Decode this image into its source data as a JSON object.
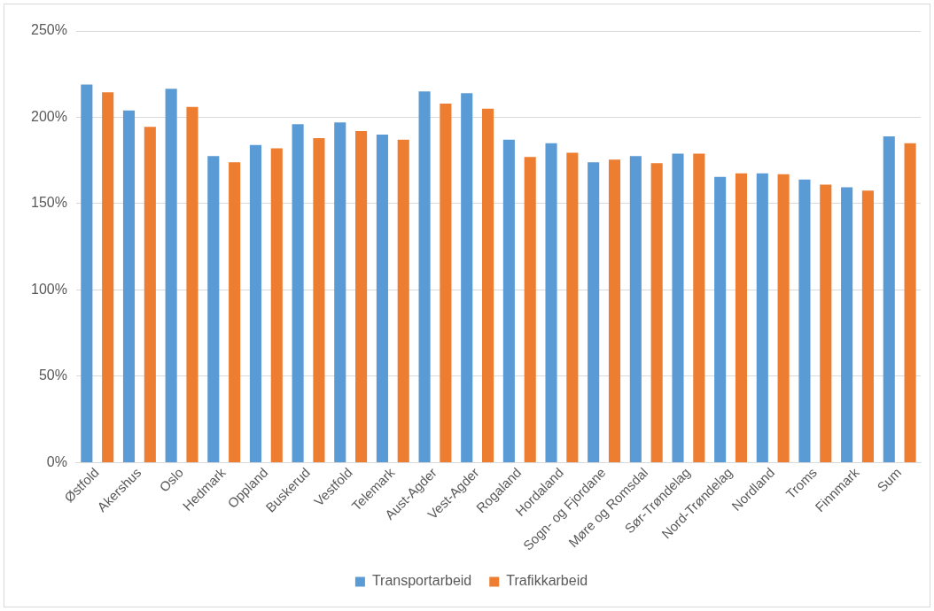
{
  "chart_data": {
    "type": "bar",
    "categories": [
      "Østfold",
      "Akershus",
      "Oslo",
      "Hedmark",
      "Oppland",
      "Buskerud",
      "Vestfold",
      "Telemark",
      "Aust-Agder",
      "Vest-Agder",
      "Rogaland",
      "Hordaland",
      "Sogn- og Fjordane",
      "Møre og Romsdal",
      "Sør-Trøndelag",
      "Nord-Trøndelag",
      "Nordland",
      "Troms",
      "Finnmark",
      "Sum"
    ],
    "series": [
      {
        "name": "Transportarbeid",
        "color": "#5b9bd5",
        "values": [
          219,
          204,
          216.5,
          177.5,
          184,
          196,
          197,
          190,
          215,
          214,
          187,
          185,
          174,
          177.5,
          179,
          165.5,
          167.5,
          164,
          159.5,
          189
        ]
      },
      {
        "name": "Trafikkarbeid",
        "color": "#ed7d31",
        "values": [
          214.5,
          194.5,
          206,
          174,
          182,
          188,
          192,
          187,
          208,
          205,
          177,
          179.5,
          175.5,
          173.5,
          179,
          167.5,
          167,
          161,
          157.5,
          185
        ]
      }
    ],
    "ylim": [
      0,
      250
    ],
    "yticks": [
      {
        "value": 0,
        "label": "0%"
      },
      {
        "value": 50,
        "label": "50%"
      },
      {
        "value": 100,
        "label": "100%"
      },
      {
        "value": 150,
        "label": "150%"
      },
      {
        "value": 200,
        "label": "200%"
      },
      {
        "value": 250,
        "label": "250%"
      }
    ],
    "grid": "y",
    "legend": "bottom"
  }
}
